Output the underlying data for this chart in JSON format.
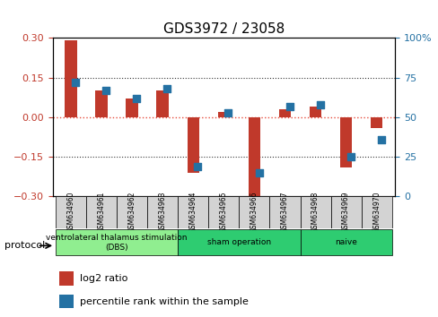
{
  "title": "GDS3972 / 23058",
  "samples": [
    "GSM634960",
    "GSM634961",
    "GSM634962",
    "GSM634963",
    "GSM634964",
    "GSM634965",
    "GSM634966",
    "GSM634967",
    "GSM634968",
    "GSM634969",
    "GSM634970"
  ],
  "log2_ratio": [
    0.29,
    0.1,
    0.07,
    0.1,
    -0.21,
    0.02,
    -0.3,
    0.03,
    0.04,
    -0.19,
    -0.04
  ],
  "percentile_rank": [
    72,
    67,
    62,
    68,
    19,
    53,
    15,
    57,
    58,
    25,
    36
  ],
  "ylim_left": [
    -0.3,
    0.3
  ],
  "ylim_right": [
    0,
    100
  ],
  "yticks_left": [
    -0.3,
    -0.15,
    0,
    0.15,
    0.3
  ],
  "yticks_right": [
    0,
    25,
    50,
    75,
    100
  ],
  "bar_color": "#c0392b",
  "dot_color": "#2471a3",
  "zero_line_color": "#e74c3c",
  "grid_color": "#333333",
  "protocol_groups": [
    {
      "label": "ventrolateral thalamus stimulation\n(DBS)",
      "start": 0,
      "end": 3,
      "color": "#90ee90"
    },
    {
      "label": "sham operation",
      "start": 4,
      "end": 7,
      "color": "#2ecc71"
    },
    {
      "label": "naive",
      "start": 8,
      "end": 10,
      "color": "#2ecc71"
    }
  ],
  "legend_log2_label": "log2 ratio",
  "legend_pct_label": "percentile rank within the sample",
  "protocol_label": "protocol",
  "bar_width": 0.4,
  "dot_size": 40
}
